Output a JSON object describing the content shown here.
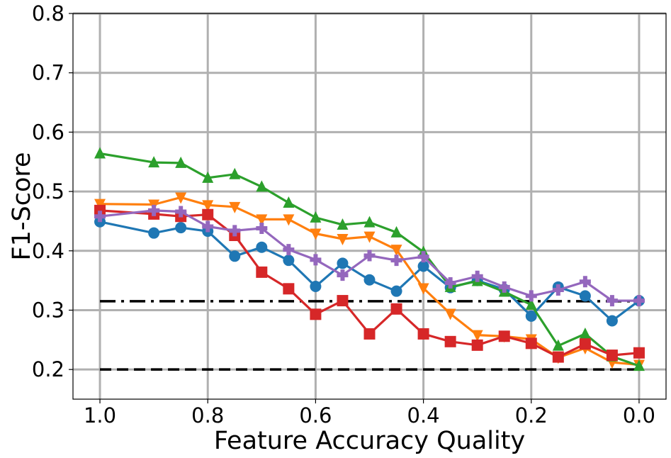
{
  "chart_data": {
    "type": "line",
    "title": "",
    "xlabel": "Feature Accuracy Quality",
    "ylabel": "F1-Score",
    "xlim": [
      1.05,
      -0.05
    ],
    "ylim": [
      0.15,
      0.8
    ],
    "x_ticks": [
      1.0,
      0.8,
      0.6,
      0.4,
      0.2,
      0.0
    ],
    "x_tick_labels": [
      "1.0",
      "0.8",
      "0.6",
      "0.4",
      "0.2",
      "0.0"
    ],
    "y_ticks": [
      0.2,
      0.3,
      0.4,
      0.5,
      0.6,
      0.7,
      0.8
    ],
    "y_tick_labels": [
      "0.2",
      "0.3",
      "0.4",
      "0.5",
      "0.6",
      "0.7",
      "0.8"
    ],
    "grid": true,
    "x": [
      1.0,
      0.9,
      0.85,
      0.8,
      0.75,
      0.7,
      0.65,
      0.6,
      0.55,
      0.5,
      0.45,
      0.4,
      0.35,
      0.3,
      0.25,
      0.2,
      0.15,
      0.1,
      0.05,
      0.0
    ],
    "series": [
      {
        "color": "#1f77b4",
        "marker": "circle",
        "values": [
          0.449,
          0.43,
          0.439,
          0.433,
          0.391,
          0.406,
          0.384,
          0.34,
          0.379,
          0.351,
          0.332,
          0.374,
          0.338,
          0.35,
          0.335,
          0.29,
          0.339,
          0.324,
          0.282,
          0.316
        ]
      },
      {
        "color": "#ff7f0e",
        "marker": "triangle-down",
        "values": [
          0.479,
          0.478,
          0.49,
          0.477,
          0.474,
          0.453,
          0.453,
          0.429,
          0.42,
          0.424,
          0.402,
          0.337,
          0.294,
          0.258,
          0.256,
          0.251,
          0.22,
          0.236,
          0.212,
          0.208
        ]
      },
      {
        "color": "#2ca02c",
        "marker": "triangle-up",
        "values": [
          0.564,
          0.549,
          0.548,
          0.523,
          0.529,
          0.508,
          0.481,
          0.456,
          0.444,
          0.448,
          0.431,
          0.398,
          0.339,
          0.349,
          0.331,
          0.309,
          0.24,
          0.26,
          0.222,
          0.206
        ]
      },
      {
        "color": "#d62728",
        "marker": "square",
        "values": [
          0.468,
          0.462,
          0.458,
          0.461,
          0.426,
          0.364,
          0.336,
          0.293,
          0.316,
          0.26,
          0.302,
          0.26,
          0.247,
          0.241,
          0.256,
          0.244,
          0.221,
          0.243,
          0.224,
          0.228
        ]
      },
      {
        "color": "#9467bd",
        "marker": "plus",
        "values": [
          0.458,
          0.468,
          0.466,
          0.441,
          0.434,
          0.438,
          0.402,
          0.385,
          0.359,
          0.392,
          0.384,
          0.39,
          0.346,
          0.357,
          0.339,
          0.324,
          0.334,
          0.348,
          0.316,
          0.316
        ]
      }
    ],
    "reference_lines": [
      {
        "y": 0.315,
        "style": "dash-dot",
        "color": "#000000"
      },
      {
        "y": 0.2,
        "style": "dashed",
        "color": "#000000"
      }
    ]
  }
}
